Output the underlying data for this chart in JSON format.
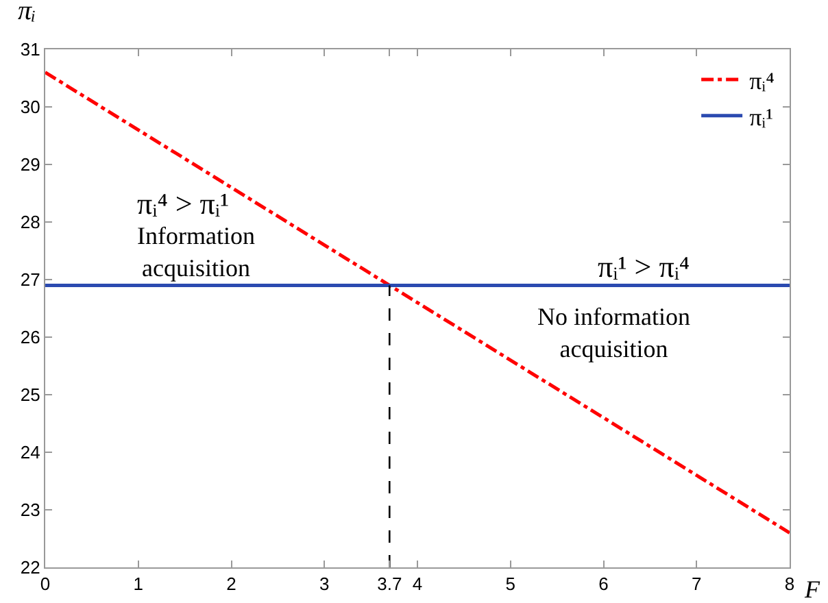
{
  "chart_data": {
    "type": "line",
    "xlabel": "F",
    "ylabel": "πᵢ",
    "x": [
      0,
      8
    ],
    "series": [
      {
        "name": "πᵢ⁴",
        "color": "#ff0000",
        "values": [
          30.6,
          22.6
        ],
        "line_style": "dashdot"
      },
      {
        "name": "πᵢ¹",
        "color": "#2b4ab0",
        "values": [
          26.9,
          26.9
        ],
        "line_style": "solid"
      },
      {
        "color": "#000000",
        "x": [
          3.7,
          3.7
        ],
        "values": [
          22,
          26.9
        ],
        "line_style": "dashed"
      }
    ],
    "xlim": [
      0,
      8
    ],
    "xticks": [
      0,
      1,
      2,
      3,
      {
        "value": 3.7,
        "label": "3.7"
      },
      4,
      5,
      6,
      7,
      8
    ],
    "ylim": [
      22,
      31
    ],
    "yticks": [
      22,
      23,
      24,
      25,
      26,
      27,
      28,
      29,
      30,
      31
    ],
    "annotations": [
      "πᵢ⁴ > πᵢ¹",
      "Information\nacquisition",
      "πᵢ¹ > πᵢ⁴",
      "No information\nacquisition"
    ],
    "grid": false,
    "legend": "top right",
    "marker": "none"
  }
}
